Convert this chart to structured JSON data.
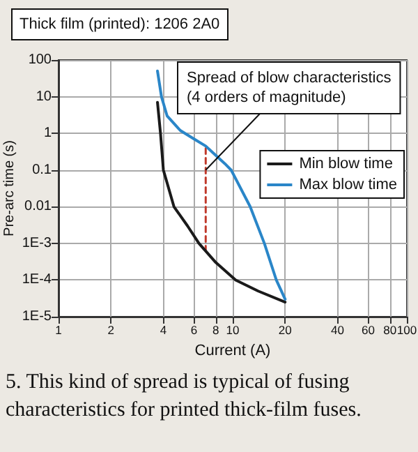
{
  "chart_data": {
    "type": "line",
    "title": "Thick film (printed): 1206 2A0",
    "xlabel": "Current (A)",
    "ylabel": "Pre-arc time (s)",
    "log": "xy",
    "xlim": [
      1,
      100
    ],
    "ylim": [
      1e-05,
      100
    ],
    "xticks": [
      1,
      2,
      4,
      6,
      8,
      10,
      20,
      40,
      60,
      80,
      100
    ],
    "yticks": [
      {
        "value": 1e-05,
        "label": "1E-5"
      },
      {
        "value": 0.0001,
        "label": "1E-4"
      },
      {
        "value": 0.001,
        "label": "1E-3"
      },
      0.01,
      0.1,
      1,
      10,
      100
    ],
    "grid": true,
    "legend": "right",
    "marker": "none",
    "line_style": "solid",
    "series": [
      {
        "name": "Min blow time",
        "color": "#1a1a1a",
        "x": [
          3.7,
          3.85,
          4,
          4.6,
          5.5,
          6.4,
          8,
          10.4,
          14,
          20
        ],
        "values": [
          7,
          1,
          0.1,
          0.01,
          0.003,
          0.001,
          0.0003,
          0.0001,
          5e-05,
          2.5e-05
        ]
      },
      {
        "name": "Max blow time",
        "color": "#2a86c8",
        "x": [
          3.7,
          3.9,
          4.2,
          5,
          6,
          7,
          8,
          9,
          9.8,
          12.6,
          15.2,
          17.8,
          20
        ],
        "values": [
          50,
          10,
          3,
          1.2,
          0.7,
          0.45,
          0.25,
          0.15,
          0.1,
          0.01,
          0.001,
          0.0001,
          3e-05
        ]
      },
      {
        "color": "#c0392b",
        "line_style": "dashed",
        "x": [
          7,
          7
        ],
        "values": [
          0.0006,
          0.4
        ]
      }
    ],
    "annotations": [
      {
        "text": "Spread of blow characteristics\n(4 orders of magnitude)",
        "x": 7,
        "y": 0.1
      },
      "5. This kind of spread is typical of fusing characteristics for printed thick-film fuses."
    ]
  }
}
